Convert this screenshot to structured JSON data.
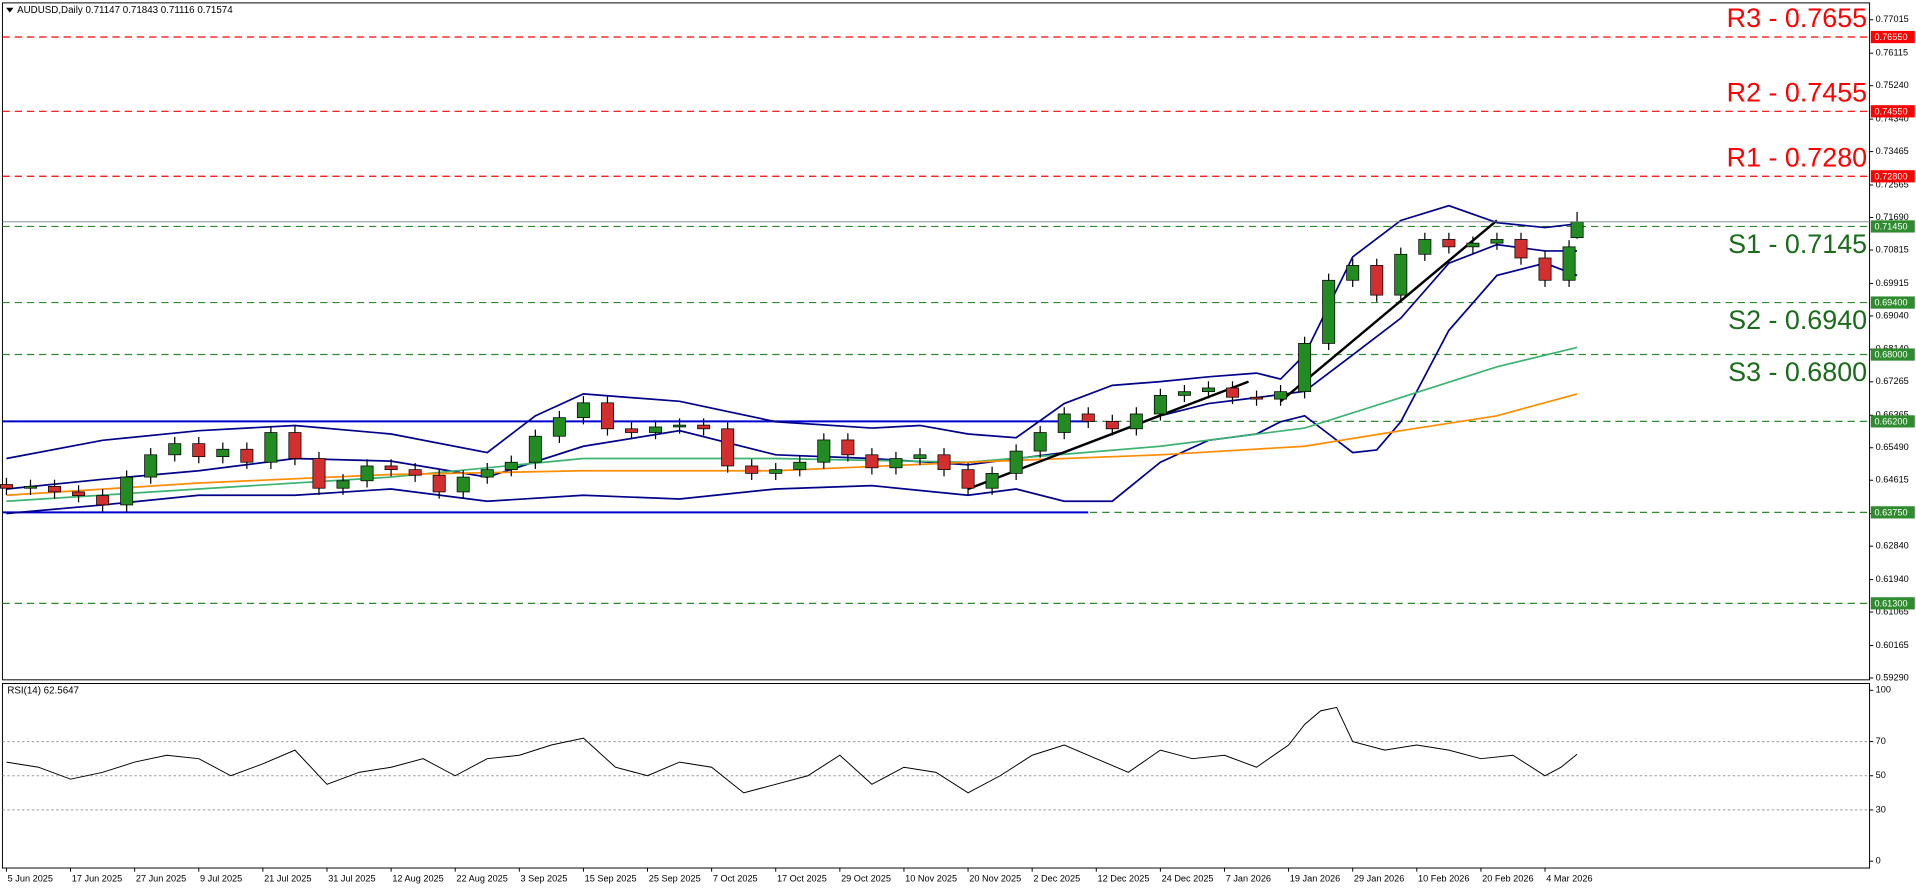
{
  "chart_data": {
    "type": "candlestick",
    "title": "AUDUSD,Daily  0.71147 0.71843 0.71116 0.71574",
    "colors": {
      "up": "#228b22",
      "down": "#d32f2f",
      "bands": "#00008b",
      "ma_fast": "#3cb371",
      "ma_slow": "#ff8c00",
      "trend": "#000000",
      "range": "#0000cd"
    },
    "xlim": [
      -0.5,
      232.5
    ],
    "xticks": [
      {
        "value": 0,
        "label": "5 Jun 2025"
      },
      {
        "value": 8,
        "label": "17 Jun 2025"
      },
      {
        "value": 16,
        "label": "27 Jun 2025"
      },
      {
        "value": 24,
        "label": "9 Jul 2025"
      },
      {
        "value": 32,
        "label": "21 Jul 2025"
      },
      {
        "value": 40,
        "label": "31 Jul 2025"
      },
      {
        "value": 48,
        "label": "12 Aug 2025"
      },
      {
        "value": 56,
        "label": "22 Aug 2025"
      },
      {
        "value": 64,
        "label": "3 Sep 2025"
      },
      {
        "value": 72,
        "label": "15 Sep 2025"
      },
      {
        "value": 80,
        "label": "25 Sep 2025"
      },
      {
        "value": 88,
        "label": "7 Oct 2025"
      },
      {
        "value": 96,
        "label": "17 Oct 2025"
      },
      {
        "value": 104,
        "label": "29 Oct 2025"
      },
      {
        "value": 112,
        "label": "10 Nov 2025"
      },
      {
        "value": 120,
        "label": "20 Nov 2025"
      },
      {
        "value": 128,
        "label": "2 Dec 2025"
      },
      {
        "value": 136,
        "label": "12 Dec 2025"
      },
      {
        "value": 144,
        "label": "24 Dec 2025"
      },
      {
        "value": 152,
        "label": "7 Jan 2026"
      },
      {
        "value": 160,
        "label": "19 Jan 2026"
      },
      {
        "value": 168,
        "label": "29 Jan 2026"
      },
      {
        "value": 176,
        "label": "10 Feb 2026"
      },
      {
        "value": 184,
        "label": "20 Feb 2026"
      },
      {
        "value": 192,
        "label": "4 Mar 2026"
      }
    ],
    "ylim": [
      0.5924,
      0.7747
    ],
    "yticks": [
      {
        "value": 0.77015,
        "label": "0.77015"
      },
      {
        "value": 0.76115,
        "label": "0.76115"
      },
      {
        "value": 0.7524,
        "label": "0.75240"
      },
      {
        "value": 0.7434,
        "label": "0.74340"
      },
      {
        "value": 0.73465,
        "label": "0.73465"
      },
      {
        "value": 0.72565,
        "label": "0.72565"
      },
      {
        "value": 0.7169,
        "label": "0.71690"
      },
      {
        "value": 0.70815,
        "label": "0.70815"
      },
      {
        "value": 0.69915,
        "label": "0.69915"
      },
      {
        "value": 0.6904,
        "label": "0.69040"
      },
      {
        "value": 0.6814,
        "label": "0.68140"
      },
      {
        "value": 0.67265,
        "label": "0.67265"
      },
      {
        "value": 0.66365,
        "label": "0.66365"
      },
      {
        "value": 0.6549,
        "label": "0.65490"
      },
      {
        "value": 0.64615,
        "label": "0.64615"
      },
      {
        "value": 0.63715,
        "label": "0.63715"
      },
      {
        "value": 0.6284,
        "label": "0.62840"
      },
      {
        "value": 0.6194,
        "label": "0.61940"
      },
      {
        "value": 0.61065,
        "label": "0.61065"
      },
      {
        "value": 0.60165,
        "label": "0.60165"
      },
      {
        "value": 0.5929,
        "label": "0.59290"
      }
    ],
    "levels": [
      {
        "label": "R3 - 0.7655",
        "value": 0.7655,
        "axis_label": "0.76550",
        "color": "#ff0000",
        "label_color": "#ff0000",
        "label_side": "above"
      },
      {
        "label": "R2 - 0.7455",
        "value": 0.7455,
        "axis_label": "0.74550",
        "color": "#ff0000",
        "label_color": "#ff0000",
        "label_side": "above"
      },
      {
        "label": "R1 - 0.7280",
        "value": 0.728,
        "axis_label": "0.72800",
        "color": "#ff0000",
        "label_color": "#ff0000",
        "label_side": "above"
      },
      {
        "label": "S1 - 0.7145",
        "value": 0.7145,
        "axis_label": "0.71450",
        "color": "#2e8b2e",
        "label_color": "#1a6b1a",
        "label_side": "below"
      },
      {
        "label": "S2 - 0.6940",
        "value": 0.694,
        "axis_label": "0.69400",
        "color": "#2e8b2e",
        "label_color": "#1a6b1a",
        "label_side": "below"
      },
      {
        "label": "S3 - 0.6800",
        "value": 0.68,
        "axis_label": "0.68000",
        "color": "#2e8b2e",
        "label_color": "#1a6b1a",
        "label_side": "below"
      },
      {
        "value": 0.662,
        "axis_label": "0.66200",
        "color": "#2e8b2e"
      },
      {
        "value": 0.6375,
        "axis_label": "0.63750",
        "color": "#2e8b2e"
      },
      {
        "value": 0.613,
        "axis_label": "0.61300",
        "color": "#2e8b2e"
      }
    ],
    "range_lines": [
      {
        "value": 0.662,
        "x": [
          -0.5,
          135
        ]
      },
      {
        "value": 0.6375,
        "x": [
          -0.5,
          135
        ]
      }
    ],
    "candles": {
      "x": [
        0,
        3,
        6,
        9,
        12,
        15,
        18,
        21,
        24,
        27,
        30,
        33,
        36,
        39,
        42,
        45,
        48,
        51,
        54,
        57,
        60,
        63,
        66,
        69,
        72,
        75,
        78,
        81,
        84,
        87,
        90,
        93,
        96,
        99,
        102,
        105,
        108,
        111,
        114,
        117,
        120,
        123,
        126,
        129,
        132,
        135,
        138,
        141,
        144,
        147,
        150,
        153,
        156,
        159,
        162,
        165,
        168,
        171,
        174,
        177,
        180,
        183,
        186,
        189,
        192,
        195,
        196
      ],
      "open": [
        0.645,
        0.644,
        0.6445,
        0.643,
        0.642,
        0.6395,
        0.647,
        0.653,
        0.656,
        0.6525,
        0.6545,
        0.651,
        0.659,
        0.652,
        0.644,
        0.646,
        0.65,
        0.649,
        0.6475,
        0.643,
        0.647,
        0.649,
        0.651,
        0.658,
        0.663,
        0.667,
        0.66,
        0.659,
        0.6605,
        0.661,
        0.66,
        0.65,
        0.648,
        0.649,
        0.651,
        0.657,
        0.653,
        0.6495,
        0.652,
        0.653,
        0.649,
        0.644,
        0.648,
        0.654,
        0.659,
        0.664,
        0.662,
        0.66,
        0.664,
        0.669,
        0.67,
        0.671,
        0.6685,
        0.668,
        0.67,
        0.683,
        0.7,
        0.704,
        0.696,
        0.707,
        0.711,
        0.709,
        0.71,
        0.711,
        0.706,
        0.7,
        0.71147
      ],
      "high": [
        0.6468,
        0.6463,
        0.6463,
        0.6448,
        0.6438,
        0.6488,
        0.6548,
        0.6578,
        0.6578,
        0.6563,
        0.6563,
        0.6608,
        0.6608,
        0.6538,
        0.6478,
        0.6518,
        0.6518,
        0.6508,
        0.6493,
        0.6488,
        0.6508,
        0.6528,
        0.6598,
        0.6648,
        0.6688,
        0.6688,
        0.6618,
        0.6623,
        0.6628,
        0.6628,
        0.6618,
        0.6518,
        0.6508,
        0.6528,
        0.6588,
        0.6588,
        0.6548,
        0.6538,
        0.6548,
        0.6548,
        0.6508,
        0.6498,
        0.6558,
        0.6608,
        0.6658,
        0.6658,
        0.6638,
        0.6658,
        0.6708,
        0.6718,
        0.6728,
        0.6728,
        0.6703,
        0.6718,
        0.6848,
        0.7018,
        0.7058,
        0.7058,
        0.7088,
        0.7128,
        0.7128,
        0.7118,
        0.7128,
        0.7128,
        0.7078,
        0.7108,
        0.71843
      ],
      "low": [
        0.6422,
        0.6422,
        0.6412,
        0.6402,
        0.6377,
        0.6377,
        0.6452,
        0.6512,
        0.6507,
        0.6507,
        0.6492,
        0.6492,
        0.6502,
        0.6422,
        0.6422,
        0.6442,
        0.6472,
        0.6457,
        0.6412,
        0.6412,
        0.6452,
        0.6472,
        0.6492,
        0.6562,
        0.6612,
        0.6582,
        0.6572,
        0.6572,
        0.6587,
        0.6582,
        0.6482,
        0.6462,
        0.6462,
        0.6472,
        0.6492,
        0.6512,
        0.6477,
        0.6477,
        0.6502,
        0.6472,
        0.6422,
        0.6422,
        0.6462,
        0.6522,
        0.6572,
        0.6602,
        0.6582,
        0.6582,
        0.6622,
        0.6672,
        0.6682,
        0.6667,
        0.6662,
        0.6662,
        0.6682,
        0.6812,
        0.6982,
        0.6942,
        0.6942,
        0.7052,
        0.7072,
        0.7072,
        0.7082,
        0.7042,
        0.6982,
        0.6982,
        0.71116
      ],
      "close": [
        0.644,
        0.6445,
        0.643,
        0.642,
        0.6395,
        0.647,
        0.653,
        0.656,
        0.6525,
        0.6545,
        0.651,
        0.659,
        0.652,
        0.644,
        0.646,
        0.65,
        0.649,
        0.6475,
        0.643,
        0.647,
        0.649,
        0.651,
        0.658,
        0.663,
        0.667,
        0.66,
        0.659,
        0.6605,
        0.661,
        0.66,
        0.65,
        0.648,
        0.649,
        0.651,
        0.657,
        0.653,
        0.6495,
        0.652,
        0.653,
        0.649,
        0.644,
        0.648,
        0.654,
        0.659,
        0.664,
        0.662,
        0.66,
        0.664,
        0.669,
        0.67,
        0.671,
        0.6685,
        0.668,
        0.67,
        0.683,
        0.7,
        0.704,
        0.696,
        0.707,
        0.711,
        0.709,
        0.71,
        0.711,
        0.706,
        0.7,
        0.709,
        0.71574
      ]
    },
    "overlays": [
      {
        "role": "bands",
        "x": [
          0,
          12,
          24,
          36,
          48,
          60,
          66,
          72,
          84,
          96,
          108,
          114,
          120,
          126,
          132,
          138,
          144,
          150,
          156,
          159,
          162,
          168,
          174,
          180,
          186,
          192,
          196
        ],
        "values": [
          0.652,
          0.6569,
          0.6595,
          0.6609,
          0.6586,
          0.6536,
          0.6635,
          0.6694,
          0.6674,
          0.6619,
          0.6602,
          0.6609,
          0.6586,
          0.6576,
          0.6668,
          0.6717,
          0.6727,
          0.674,
          0.675,
          0.6734,
          0.6799,
          0.7063,
          0.7161,
          0.7201,
          0.7155,
          0.7142,
          0.7152
        ]
      },
      {
        "role": "bands",
        "x": [
          0,
          12,
          24,
          36,
          48,
          60,
          72,
          84,
          96,
          108,
          120,
          132,
          144,
          150,
          156,
          162,
          168,
          174,
          180,
          186,
          192,
          196
        ],
        "values": [
          0.6438,
          0.6464,
          0.6487,
          0.652,
          0.6513,
          0.647,
          0.6553,
          0.6595,
          0.653,
          0.652,
          0.6503,
          0.6536,
          0.6635,
          0.6668,
          0.6684,
          0.6701,
          0.6799,
          0.6898,
          0.7046,
          0.7096,
          0.7079,
          0.7079
        ]
      },
      {
        "role": "bands",
        "x": [
          0,
          12,
          24,
          36,
          48,
          60,
          72,
          84,
          96,
          108,
          120,
          126,
          132,
          138,
          144,
          150,
          156,
          159,
          162,
          165,
          168,
          171,
          174,
          180,
          186,
          192,
          196
        ],
        "values": [
          0.6372,
          0.6395,
          0.6421,
          0.6421,
          0.6438,
          0.6405,
          0.6421,
          0.6411,
          0.6438,
          0.6447,
          0.6421,
          0.6438,
          0.6405,
          0.6405,
          0.651,
          0.6569,
          0.6586,
          0.6619,
          0.6635,
          0.6586,
          0.6536,
          0.6543,
          0.6619,
          0.6865,
          0.7013,
          0.7046,
          0.7013
        ]
      },
      {
        "role": "ma_fast",
        "x": [
          0,
          24,
          48,
          72,
          96,
          120,
          144,
          162,
          174,
          186,
          196
        ],
        "values": [
          0.6405,
          0.6438,
          0.647,
          0.652,
          0.652,
          0.651,
          0.6553,
          0.6602,
          0.6684,
          0.6767,
          0.6819
        ]
      },
      {
        "role": "ma_slow",
        "x": [
          0,
          24,
          48,
          72,
          96,
          120,
          144,
          162,
          174,
          186,
          196
        ],
        "values": [
          0.6421,
          0.6454,
          0.6477,
          0.6487,
          0.6487,
          0.651,
          0.653,
          0.6553,
          0.6595,
          0.6635,
          0.6694
        ]
      },
      {
        "role": "trend",
        "x": [
          120,
          155
        ],
        "values": [
          0.6438,
          0.6727
        ]
      },
      {
        "role": "trend",
        "x": [
          159,
          186
        ],
        "values": [
          0.6674,
          0.7161
        ]
      }
    ],
    "rsi": {
      "title": "RSI(14) 62.5647",
      "color": "#000000",
      "ylim": [
        -4,
        104
      ],
      "yticks": [
        100,
        70,
        50,
        30,
        0
      ],
      "grid": true,
      "x": [
        0,
        4,
        8,
        12,
        16,
        20,
        24,
        28,
        32,
        36,
        40,
        44,
        48,
        52,
        56,
        60,
        64,
        68,
        72,
        76,
        80,
        84,
        88,
        92,
        96,
        100,
        104,
        108,
        112,
        116,
        120,
        124,
        128,
        132,
        136,
        140,
        144,
        148,
        152,
        156,
        160,
        162,
        164,
        166,
        168,
        172,
        176,
        180,
        184,
        188,
        192,
        194,
        196
      ],
      "values": [
        58,
        55,
        48,
        52,
        58,
        62,
        60,
        50,
        57,
        65,
        45,
        52,
        55,
        60,
        50,
        60,
        62,
        68,
        72,
        55,
        50,
        58,
        55,
        40,
        45,
        50,
        62,
        45,
        55,
        52,
        40,
        50,
        62,
        68,
        60,
        52,
        65,
        60,
        62,
        55,
        68,
        80,
        88,
        90,
        70,
        65,
        68,
        65,
        60,
        62,
        50,
        55,
        62.5647
      ]
    }
  }
}
